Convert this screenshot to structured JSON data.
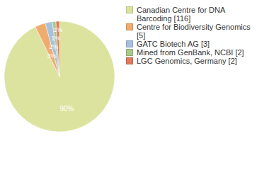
{
  "chart_data": {
    "type": "pie",
    "categories": [
      "Canadian Centre for DNA Barcoding [116]",
      "Centre for Biodiversity Genomics [5]",
      "GATC Biotech AG [3]",
      "Mined from GenBank, NCBI [2]",
      "LGC Genomics, Germany [2]"
    ],
    "values": [
      90,
      3,
      2,
      1,
      1
    ],
    "value_labels": [
      "90%",
      "3%",
      "2%",
      "1%",
      "1%"
    ],
    "colors": [
      "#dce39f",
      "#f0ac6e",
      "#a7c0dd",
      "#a8c98a",
      "#e07a5c"
    ],
    "data_labels": true,
    "legend": "right"
  }
}
